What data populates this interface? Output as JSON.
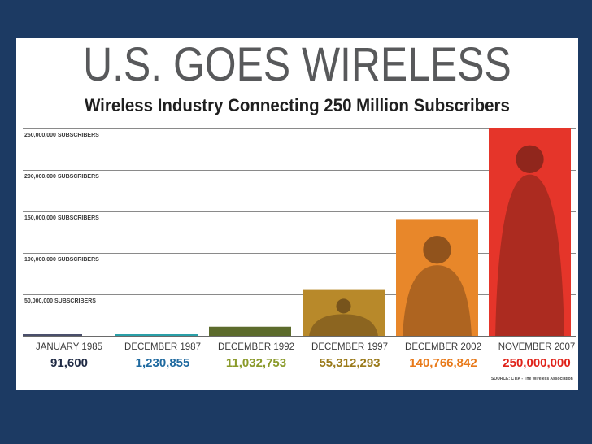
{
  "title": "U.S. GOES WIRELESS",
  "subtitle": "Wireless Industry Connecting 250 Million Subscribers",
  "source_note": "SOURCE: CTIA - The Wireless Association",
  "colors": {
    "background": "#1c3a63",
    "card": "#ffffff",
    "gridline": "#8a8a8a",
    "title": "#58595b"
  },
  "chart_data": {
    "type": "bar",
    "title": "U.S. GOES WIRELESS",
    "subtitle": "Wireless Industry Connecting 250 Million Subscribers",
    "categories": [
      "JANUARY 1985",
      "DECEMBER 1987",
      "DECEMBER 1992",
      "DECEMBER 1997",
      "DECEMBER 2002",
      "NOVEMBER 2007"
    ],
    "values": [
      91600,
      1230855,
      11032753,
      55312293,
      140766842,
      250000000
    ],
    "value_labels": [
      "91,600",
      "1,230,855",
      "11,032,753",
      "55,312,293",
      "140,766,842",
      "250,000,000"
    ],
    "bar_colors": [
      "#4a4f6b",
      "#2aa0a8",
      "#5c6b2c",
      "#b8892a",
      "#e8872a",
      "#e5352a"
    ],
    "label_colors": [
      "#1f2a44",
      "#1f6aa0",
      "#8a9a2a",
      "#9a7a1a",
      "#e87a1a",
      "#e0231a"
    ],
    "gridlines": [
      250000000,
      200000000,
      150000000,
      100000000,
      50000000
    ],
    "gridline_labels": [
      "250,000,000 SUBSCRIBERS",
      "200,000,000 SUBSCRIBERS",
      "150,000,000 SUBSCRIBERS",
      "100,000,000 SUBSCRIBERS",
      "50,000,000 SUBSCRIBERS"
    ],
    "ylim": [
      0,
      250000000
    ],
    "legend": "none",
    "grid": true
  }
}
